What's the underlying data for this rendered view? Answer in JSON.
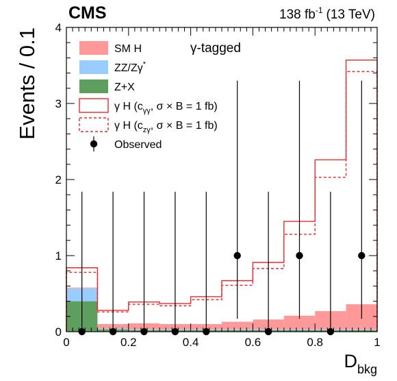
{
  "chart_data": {
    "type": "bar",
    "experiment": "CMS",
    "lumi": "138 fb",
    "lumi_sup": "-1",
    "energy": "(13 TeV)",
    "category_label": "γ-tagged",
    "xlabel": "D",
    "xlabel_sub": "bkg",
    "ylabel": "Events / 0.1",
    "xlim": [
      0,
      1
    ],
    "ylim": [
      0,
      4
    ],
    "x_ticks": [
      0,
      0.2,
      0.4,
      0.6,
      0.8,
      1
    ],
    "x_tick_labels": [
      "0",
      "0.2",
      "0.4",
      "0.6",
      "0.8",
      "1"
    ],
    "y_ticks": [
      0,
      1,
      2,
      3,
      4
    ],
    "y_tick_labels": [
      "0",
      "1",
      "2",
      "3",
      "4"
    ],
    "bin_edges": [
      0,
      0.1,
      0.2,
      0.3,
      0.4,
      0.5,
      0.6,
      0.7,
      0.8,
      0.9,
      1.0
    ],
    "stack": [
      {
        "name": "Z+X",
        "color": "#5e9e5e",
        "values": [
          0.4,
          0.03,
          0.02,
          0.02,
          0.02,
          0.02,
          0.02,
          0.02,
          0.02,
          0.02
        ]
      },
      {
        "name": "ZZ/Zγ*",
        "color": "#99ccff",
        "values": [
          0.17,
          0.01,
          0.01,
          0.01,
          0.01,
          0.01,
          0.01,
          0.01,
          0.01,
          0.01
        ]
      },
      {
        "name": "SM H",
        "color": "#ff9999",
        "values": [
          0.01,
          0.06,
          0.08,
          0.07,
          0.07,
          0.1,
          0.13,
          0.18,
          0.24,
          0.33
        ]
      }
    ],
    "signals": [
      {
        "name": "γ H (c_γγ, σ × B = 1 fb)",
        "color": "#e8292f",
        "style": "solid",
        "values": [
          0.84,
          0.28,
          0.39,
          0.37,
          0.46,
          0.67,
          0.91,
          1.45,
          2.26,
          3.57
        ]
      },
      {
        "name": "γ H (c_zγ, σ × B = 1 fb)",
        "color": "#e8292f",
        "style": "dashed",
        "values": [
          0.78,
          0.26,
          0.36,
          0.34,
          0.42,
          0.61,
          0.83,
          1.28,
          2.03,
          3.42
        ]
      }
    ],
    "observed": {
      "name": "Observed",
      "x": [
        0.05,
        0.15,
        0.25,
        0.35,
        0.45,
        0.55,
        0.65,
        0.75,
        0.85,
        0.95
      ],
      "y": [
        0,
        0,
        0,
        0,
        0,
        1,
        0,
        1,
        0,
        1
      ],
      "err_up": [
        1.84,
        1.84,
        1.84,
        1.84,
        1.84,
        2.3,
        1.84,
        2.3,
        1.84,
        2.3
      ],
      "err_down": [
        0,
        0,
        0,
        0,
        0,
        0.83,
        0,
        0.83,
        0,
        0.83
      ]
    },
    "legend": {
      "placement": "top-left",
      "entries": [
        {
          "kind": "fill",
          "color": "#ff9999",
          "text": "SM H"
        },
        {
          "kind": "fill",
          "color": "#99ccff",
          "text": "ZZ/Zγ",
          "sup": "*"
        },
        {
          "kind": "fill",
          "color": "#5e9e5e",
          "text": "Z+X"
        },
        {
          "kind": "solid",
          "color": "#e8292f",
          "pre": "γ H (c",
          "sub": "γγ",
          "post": ", σ × B = 1 fb)"
        },
        {
          "kind": "dashed",
          "color": "#e8292f",
          "pre": "γ H (c",
          "sub": "zγ",
          "post": ", σ × B = 1 fb)"
        },
        {
          "kind": "marker",
          "color": "#000000",
          "text": "Observed"
        }
      ]
    }
  }
}
